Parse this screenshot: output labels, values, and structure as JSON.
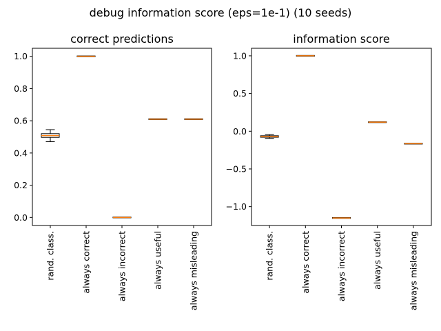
{
  "suptitle": "debug information score (eps=1e-1) (10 seeds)",
  "colors": {
    "box": "#000000",
    "median": "#ff7f0e",
    "axes": "#000000",
    "background": "#ffffff"
  },
  "chart_data": [
    {
      "type": "box",
      "title": "correct predictions",
      "xlabel": "",
      "ylabel": "",
      "ylim": [
        -0.05,
        1.05
      ],
      "yticks": [
        0.0,
        0.2,
        0.4,
        0.6,
        0.8,
        1.0
      ],
      "ytick_labels": [
        "0.0",
        "0.2",
        "0.4",
        "0.6",
        "0.8",
        "1.0"
      ],
      "grid": false,
      "categories": [
        "rand. class.",
        "always correct",
        "always incorrect",
        "always useful",
        "always misleading"
      ],
      "boxes": [
        {
          "whislo": 0.47,
          "q1": 0.497,
          "med": 0.508,
          "q3": 0.52,
          "whishi": 0.545
        },
        {
          "whislo": 1.0,
          "q1": 1.0,
          "med": 1.0,
          "q3": 1.0,
          "whishi": 1.0
        },
        {
          "whislo": 0.0,
          "q1": 0.0,
          "med": 0.0,
          "q3": 0.0,
          "whishi": 0.0
        },
        {
          "whislo": 0.61,
          "q1": 0.61,
          "med": 0.61,
          "q3": 0.61,
          "whishi": 0.61
        },
        {
          "whislo": 0.61,
          "q1": 0.61,
          "med": 0.61,
          "q3": 0.61,
          "whishi": 0.61
        }
      ]
    },
    {
      "type": "box",
      "title": "information score",
      "xlabel": "",
      "ylabel": "",
      "ylim": [
        -1.25,
        1.1
      ],
      "yticks": [
        -1.0,
        -0.5,
        0.0,
        0.5,
        1.0
      ],
      "ytick_labels": [
        "−1.0",
        "−0.5",
        "0.0",
        "0.5",
        "1.0"
      ],
      "grid": false,
      "categories": [
        "rand. class.",
        "always correct",
        "always incorrect",
        "always useful",
        "always misleading"
      ],
      "boxes": [
        {
          "whislo": -0.095,
          "q1": -0.08,
          "med": -0.07,
          "q3": -0.06,
          "whishi": -0.045
        },
        {
          "whislo": 1.0,
          "q1": 1.0,
          "med": 1.0,
          "q3": 1.0,
          "whishi": 1.0
        },
        {
          "whislo": -1.15,
          "q1": -1.15,
          "med": -1.15,
          "q3": -1.15,
          "whishi": -1.15
        },
        {
          "whislo": 0.12,
          "q1": 0.12,
          "med": 0.12,
          "q3": 0.12,
          "whishi": 0.12
        },
        {
          "whislo": -0.165,
          "q1": -0.165,
          "med": -0.165,
          "q3": -0.165,
          "whishi": -0.165
        }
      ]
    }
  ]
}
